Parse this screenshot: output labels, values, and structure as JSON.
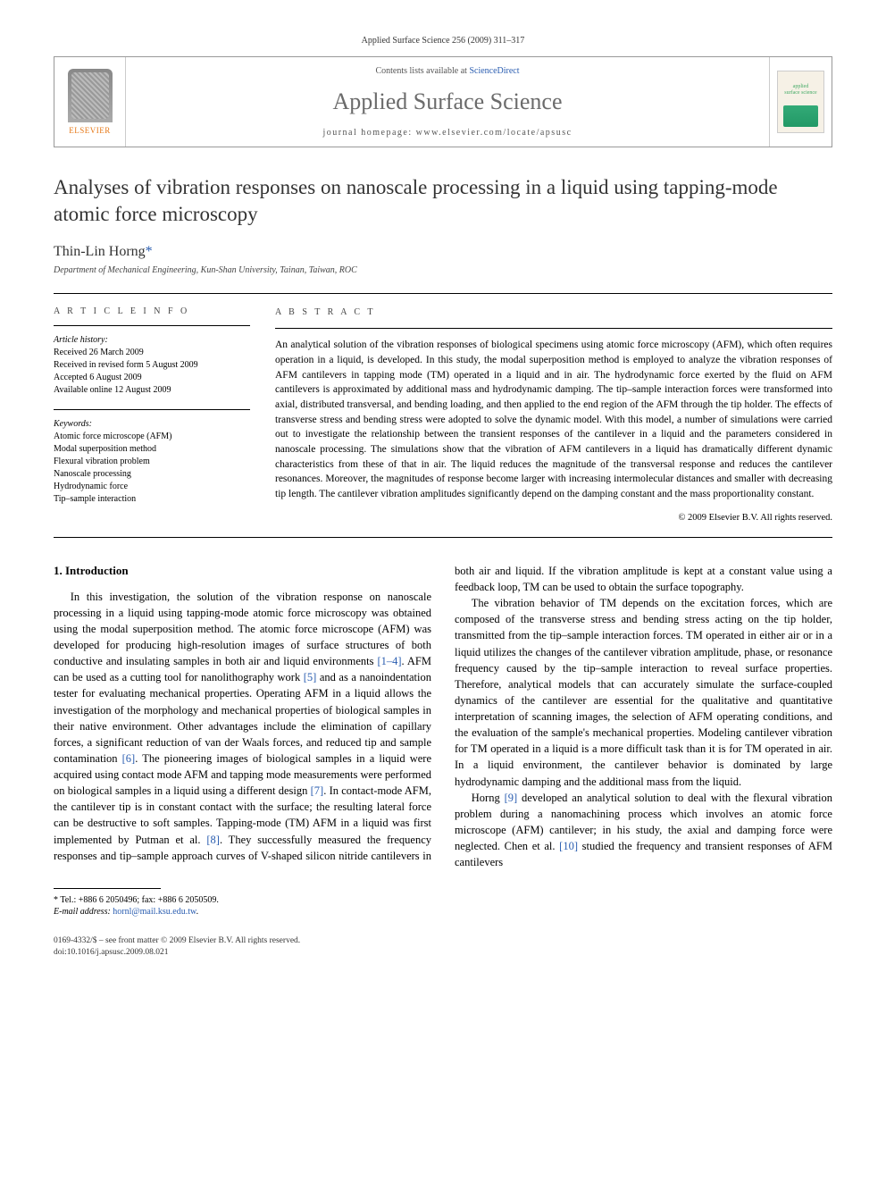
{
  "journal_header": "Applied Surface Science 256 (2009) 311–317",
  "banner": {
    "publisher_name": "ELSEVIER",
    "contents_prefix": "Contents lists available at ",
    "contents_link": "ScienceDirect",
    "journal_title": "Applied Surface Science",
    "homepage_prefix": "journal homepage: ",
    "homepage_url": "www.elsevier.com/locate/apsusc",
    "cover_label_1": "applied",
    "cover_label_2": "surface science"
  },
  "article": {
    "title": "Analyses of vibration responses on nanoscale processing in a liquid using tapping-mode atomic force microscopy",
    "author": "Thin-Lin Horng",
    "author_marker": "*",
    "affiliation": "Department of Mechanical Engineering, Kun-Shan University, Tainan, Taiwan, ROC"
  },
  "info": {
    "section_label": "A R T I C L E   I N F O",
    "history_head": "Article history:",
    "history_lines": [
      "Received 26 March 2009",
      "Received in revised form 5 August 2009",
      "Accepted 6 August 2009",
      "Available online 12 August 2009"
    ],
    "keywords_head": "Keywords:",
    "keywords": [
      "Atomic force microscope (AFM)",
      "Modal superposition method",
      "Flexural vibration problem",
      "Nanoscale processing",
      "Hydrodynamic force",
      "Tip–sample interaction"
    ]
  },
  "abstract": {
    "section_label": "A B S T R A C T",
    "text": "An analytical solution of the vibration responses of biological specimens using atomic force microscopy (AFM), which often requires operation in a liquid, is developed. In this study, the modal superposition method is employed to analyze the vibration responses of AFM cantilevers in tapping mode (TM) operated in a liquid and in air. The hydrodynamic force exerted by the fluid on AFM cantilevers is approximated by additional mass and hydrodynamic damping. The tip–sample interaction forces were transformed into axial, distributed transversal, and bending loading, and then applied to the end region of the AFM through the tip holder. The effects of transverse stress and bending stress were adopted to solve the dynamic model. With this model, a number of simulations were carried out to investigate the relationship between the transient responses of the cantilever in a liquid and the parameters considered in nanoscale processing. The simulations show that the vibration of AFM cantilevers in a liquid has dramatically different dynamic characteristics from these of that in air. The liquid reduces the magnitude of the transversal response and reduces the cantilever resonances. Moreover, the magnitudes of response become larger with increasing intermolecular distances and smaller with decreasing tip length. The cantilever vibration amplitudes significantly depend on the damping constant and the mass proportionality constant.",
    "copyright": "© 2009 Elsevier B.V. All rights reserved."
  },
  "body": {
    "heading": "1. Introduction",
    "p1a": "In this investigation, the solution of the vibration response on nanoscale processing in a liquid using tapping-mode atomic force microscopy was obtained using the modal superposition method. The atomic force microscope (AFM) was developed for producing high-resolution images of surface structures of both conductive and insulating samples in both air and liquid environments ",
    "cite1": "[1–4]",
    "p1b": ". AFM can be used as a cutting tool for nanolithography work ",
    "cite2": "[5]",
    "p1c": " and as a nanoindentation tester for evaluating mechanical properties. Operating AFM in a liquid allows the investigation of the morphology and mechanical properties of biological samples in their native environment. Other advantages include the elimination of capillary forces, a significant reduction of van der Waals forces, and reduced tip and sample contamination ",
    "cite3": "[6]",
    "p1d": ". The pioneering images of biological samples in a liquid were acquired using contact mode AFM and tapping mode measurements were performed on biological samples in a liquid using a different design ",
    "cite4": "[7]",
    "p1e": ". In contact-mode AFM, the cantilever tip is in constant contact with the surface; the resulting lateral force can be destructive to soft samples. Tapping-mode (TM) AFM in a liquid was first implemented by Putman et al. ",
    "cite5": "[8]",
    "p1f": ". They successfully measured the frequency responses and tip–sample approach curves of V-shaped silicon nitride cantilevers in both air and liquid. If the vibration amplitude is kept at a constant value using a feedback loop, TM can be used to obtain the surface topography.",
    "p2": "The vibration behavior of TM depends on the excitation forces, which are composed of the transverse stress and bending stress acting on the tip holder, transmitted from the tip–sample interaction forces. TM operated in either air or in a liquid utilizes the changes of the cantilever vibration amplitude, phase, or resonance frequency caused by the tip–sample interaction to reveal surface properties. Therefore, analytical models that can accurately simulate the surface-coupled dynamics of the cantilever are essential for the qualitative and quantitative interpretation of scanning images, the selection of AFM operating conditions, and the evaluation of the sample's mechanical properties. Modeling cantilever vibration for TM operated in a liquid is a more difficult task than it is for TM operated in air. In a liquid environment, the cantilever behavior is dominated by large hydrodynamic damping and the additional mass from the liquid.",
    "p3a": "Horng ",
    "cite6": "[9]",
    "p3b": " developed an analytical solution to deal with the flexural vibration problem during a nanomachining process which involves an atomic force microscope (AFM) cantilever; in his study, the axial and damping force were neglected. Chen et al. ",
    "cite7": "[10]",
    "p3c": " studied the frequency and transient responses of AFM cantilevers"
  },
  "footnote": {
    "tel_label": "* Tel.: +886 6 2050496; fax: +886 6 2050509.",
    "email_label": "E-mail address: ",
    "email": "hornl@mail.ksu.edu.tw",
    "email_suffix": "."
  },
  "footer": {
    "line1": "0169-4332/$ – see front matter © 2009 Elsevier B.V. All rights reserved.",
    "line2": "doi:10.1016/j.apsusc.2009.08.021"
  },
  "colors": {
    "link": "#2a5db0",
    "publisher_orange": "#e67817",
    "text": "#000000",
    "title_gray": "#6b6b6b"
  }
}
